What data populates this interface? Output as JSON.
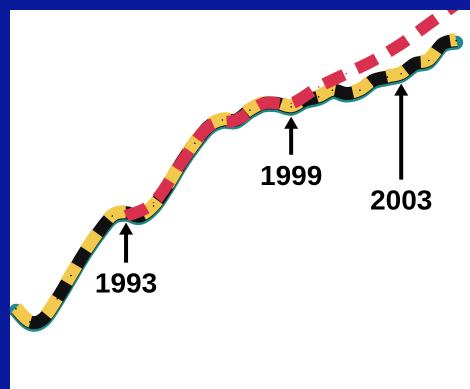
{
  "colors": {
    "background": "#0a1a9c",
    "panel": "#ffffff",
    "series_black": "#111111",
    "series_teal": "#1f8a8a",
    "series_yellow": "#f2c94c",
    "series_red": "#d9304f",
    "annotation": "#000000"
  },
  "chart_data": {
    "type": "line",
    "title": "",
    "xlabel": "",
    "ylabel": "",
    "grid": false,
    "legend": "none",
    "xlim": [
      1989.0,
      2005.5
    ],
    "ylim": [
      0,
      100
    ],
    "series": [
      {
        "style": "main",
        "x": [
          1989.0,
          1989.5,
          1990.0,
          1990.5,
          1991.0,
          1991.5,
          1992.0,
          1992.5,
          1993.0,
          1993.5,
          1994.0,
          1994.5,
          1995.0,
          1995.5,
          1996.0,
          1996.5,
          1997.0,
          1997.5,
          1998.0,
          1998.5,
          1999.0,
          1999.5,
          2000.0,
          2000.5,
          2001.0,
          2001.5,
          2002.0,
          2002.5,
          2003.0,
          2003.5,
          2004.0,
          2004.5,
          2005.0
        ],
        "y": [
          14,
          10,
          11,
          17,
          24,
          31,
          37,
          42,
          43,
          42,
          45,
          51,
          58,
          64,
          69,
          71,
          71,
          74,
          76,
          76,
          75,
          77,
          78,
          80,
          79,
          80,
          83,
          84,
          85,
          88,
          89,
          94,
          95
        ]
      },
      {
        "style": "projection",
        "x": [
          1993.0,
          1994.0,
          1995.0,
          1996.0,
          1997.0,
          1998.0,
          1999.0,
          2000.0,
          2001.0,
          2002.0,
          2003.0,
          2004.0,
          2005.0
        ],
        "y": [
          42,
          46,
          58,
          69,
          71,
          76,
          76,
          81,
          85,
          89,
          94,
          100,
          106
        ]
      }
    ],
    "annotations": [
      {
        "label": "1993",
        "x": 1993.0
      },
      {
        "label": "1999",
        "x": 1999.0
      },
      {
        "label": "2003",
        "x": 2003.0
      }
    ]
  }
}
